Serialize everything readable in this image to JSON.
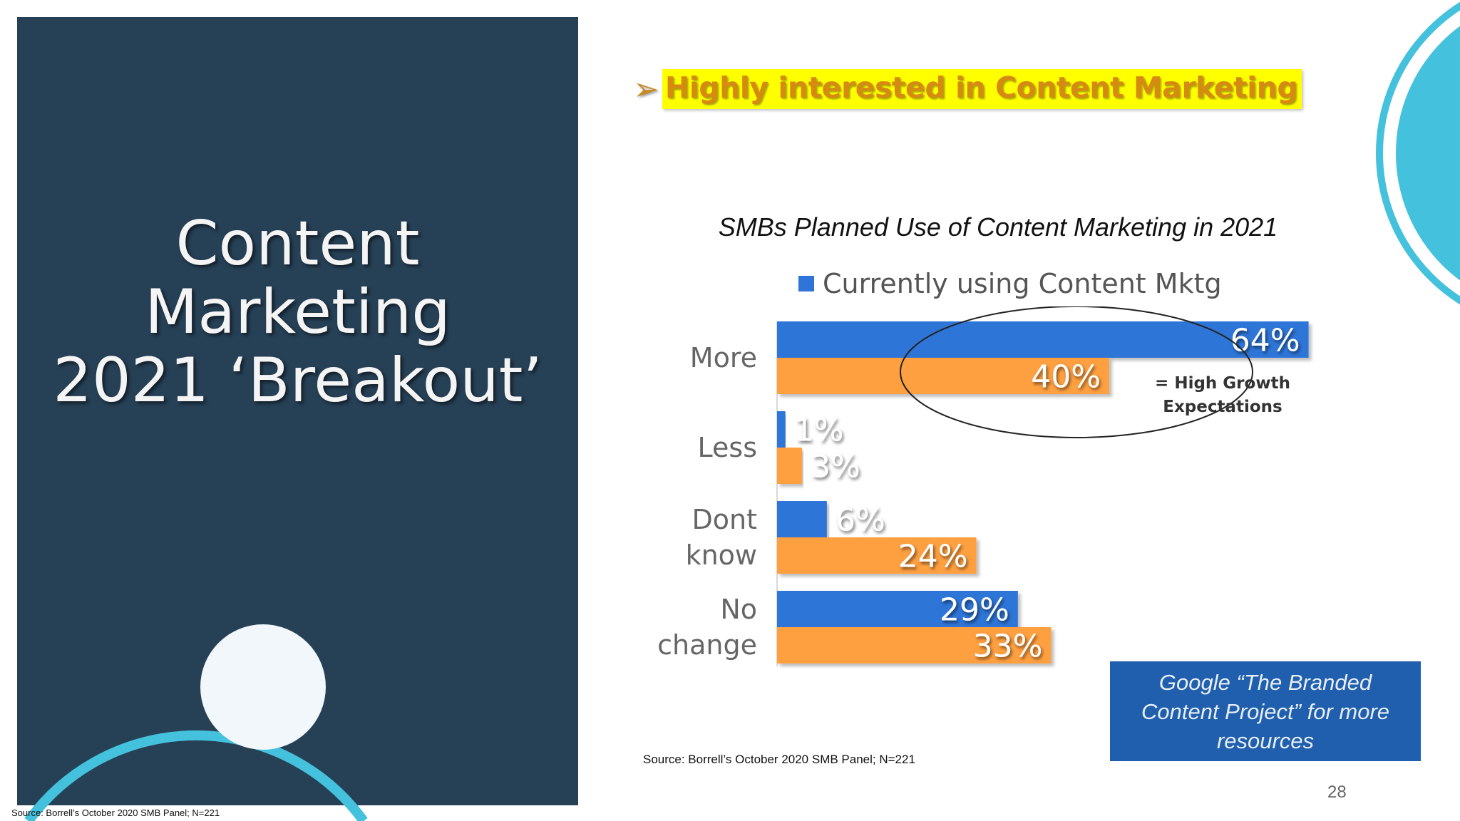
{
  "slide": {
    "title_lines": [
      "Content",
      "Marketing",
      "2021 ‘Breakout’"
    ],
    "banner_text": "Highly interested in Content Marketing",
    "banner_arrow": "➢",
    "callout_lines": [
      "Google “The Branded",
      "Content Project” for more",
      "resources"
    ],
    "source_mid": "Source: Borrell’s October 2020 SMB Panel; N=221",
    "source_bottom": "Source: Borrell’s October 2020 SMB Panel; N=221",
    "page_number": "28"
  },
  "colors": {
    "panel": "#264056",
    "series_blue": "#2f74d8",
    "series_orange": "#ffa040",
    "accent_cyan": "#44c1dc",
    "banner_yellow": "#ffff00",
    "banner_text": "#d68a12",
    "callout": "#1f5fad"
  },
  "chart_data": {
    "type": "bar",
    "orientation": "horizontal",
    "title": "SMBs Planned Use of Content Marketing in 2021",
    "categories": [
      "More",
      "Less",
      "Dont know",
      "No change"
    ],
    "category_lines": [
      [
        "More"
      ],
      [
        "Less"
      ],
      [
        "Dont",
        "know"
      ],
      [
        "No",
        "change"
      ]
    ],
    "series": [
      {
        "name": "Currently using Content Mktg",
        "values": [
          64,
          1,
          6,
          29
        ],
        "labels": [
          "64%",
          "1%",
          "6%",
          "29%"
        ]
      },
      {
        "values": [
          40,
          3,
          24,
          33
        ],
        "labels": [
          "40%",
          "3%",
          "24%",
          "33%"
        ]
      }
    ],
    "legend": "top",
    "grid": false,
    "annotation": {
      "lines": [
        "= High Growth",
        "Expectations"
      ],
      "shape": "ellipse"
    }
  }
}
